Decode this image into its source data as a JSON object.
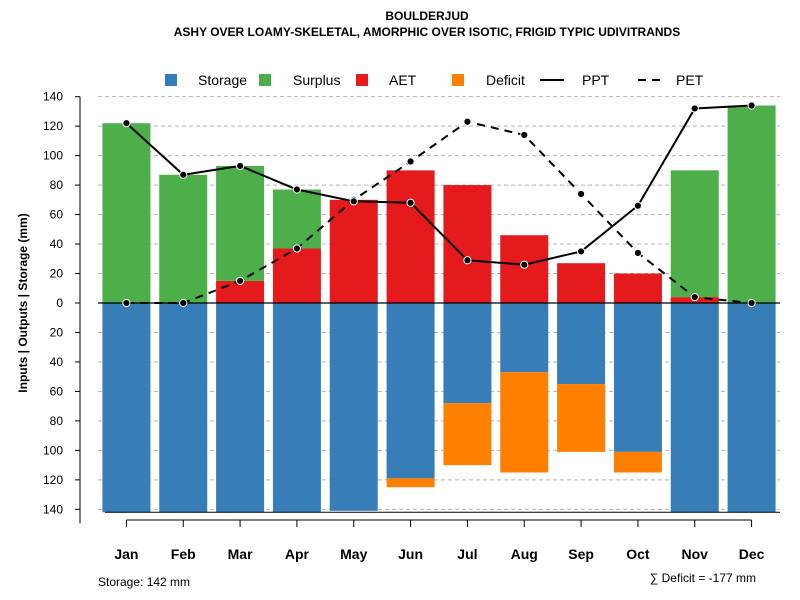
{
  "chart_data": {
    "type": "bar",
    "title": "BOULDERJUD",
    "subtitle": "ASHY OVER LOAMY-SKELETAL, AMORPHIC OVER ISOTIC, FRIGID TYPIC UDIVITRANDS",
    "ylabel": "Inputs | Outputs | Storage    (mm)",
    "categories": [
      "Jan",
      "Feb",
      "Mar",
      "Apr",
      "May",
      "Jun",
      "Jul",
      "Aug",
      "Sep",
      "Oct",
      "Nov",
      "Dec"
    ],
    "ylim": [
      -140,
      140
    ],
    "yticks": [
      "140",
      "120",
      "100",
      "80",
      "60",
      "40",
      "20",
      "0",
      "20",
      "40",
      "60",
      "80",
      "100",
      "120",
      "140"
    ],
    "legend": {
      "position": "top",
      "items": [
        {
          "label": "Storage",
          "kind": "box",
          "color": "#377EB8"
        },
        {
          "label": "Surplus",
          "kind": "box",
          "color": "#4DAF4A"
        },
        {
          "label": "AET",
          "kind": "box",
          "color": "#E41A1C"
        },
        {
          "label": "Deficit",
          "kind": "box",
          "color": "#FF7F00"
        },
        {
          "label": "PPT",
          "kind": "solid-line",
          "color": "#000000"
        },
        {
          "label": "PET",
          "kind": "dashed-line",
          "color": "#000000"
        }
      ]
    },
    "colors": {
      "storage": "#377EB8",
      "surplus": "#4DAF4A",
      "aet": "#E41A1C",
      "deficit": "#FF7F00",
      "line": "#000000",
      "grid": "#b4b4b4"
    },
    "series": [
      {
        "name": "AET",
        "values": [
          0,
          0,
          15,
          37,
          70,
          90,
          80,
          46,
          27,
          20,
          4,
          0
        ]
      },
      {
        "name": "Surplus",
        "values": [
          122,
          87,
          78,
          40,
          0,
          0,
          0,
          0,
          0,
          0,
          86,
          134
        ]
      },
      {
        "name": "Storage",
        "values": [
          142,
          142,
          142,
          142,
          141,
          119,
          68,
          47,
          55,
          101,
          142,
          142
        ]
      },
      {
        "name": "Deficit",
        "values": [
          0,
          0,
          0,
          0,
          0,
          6,
          42,
          68,
          46,
          14,
          0,
          0
        ]
      },
      {
        "name": "PPT",
        "values": [
          122,
          87,
          93,
          77,
          69,
          68,
          29,
          26,
          35,
          66,
          132,
          134
        ]
      },
      {
        "name": "PET",
        "values": [
          0,
          0,
          15,
          37,
          70,
          96,
          123,
          114,
          74,
          34,
          4,
          0
        ]
      }
    ],
    "footnotes": {
      "storage": "Storage: 142 mm",
      "deficit": "∑ Deficit = -177 mm"
    }
  }
}
